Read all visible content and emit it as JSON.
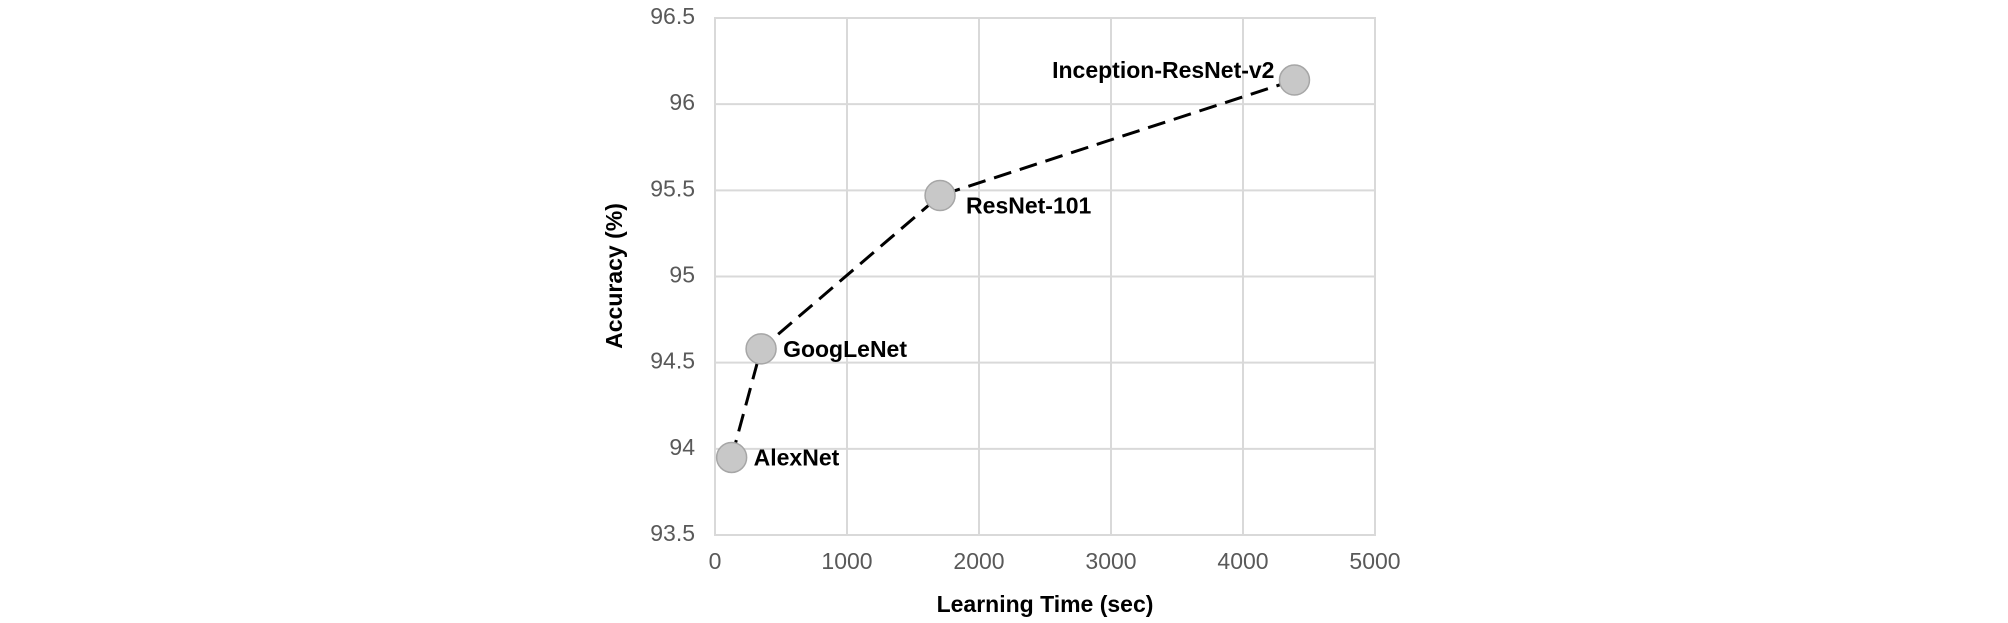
{
  "chart_data": {
    "type": "scatter",
    "x_label": "Learning Time (sec)",
    "y_label": "Accuracy (%)",
    "series": [
      {
        "labels": [
          "AlexNet",
          "GoogLeNet",
          "ResNet-101",
          "Inception-ResNet-v2"
        ],
        "x": [
          126,
          349,
          1705,
          4390
        ],
        "values": [
          93.95,
          94.58,
          95.47,
          96.14
        ],
        "color": "#c8c8c8",
        "line_style": "dashed",
        "line_color": "#000000"
      }
    ],
    "xlim": [
      0,
      5000
    ],
    "xticks": [
      0,
      1000,
      2000,
      3000,
      4000,
      5000
    ],
    "ylim": [
      93.5,
      96.5
    ],
    "yticks": [
      93.5,
      94,
      94.5,
      95,
      95.5,
      96,
      96.5
    ],
    "grid": true
  }
}
